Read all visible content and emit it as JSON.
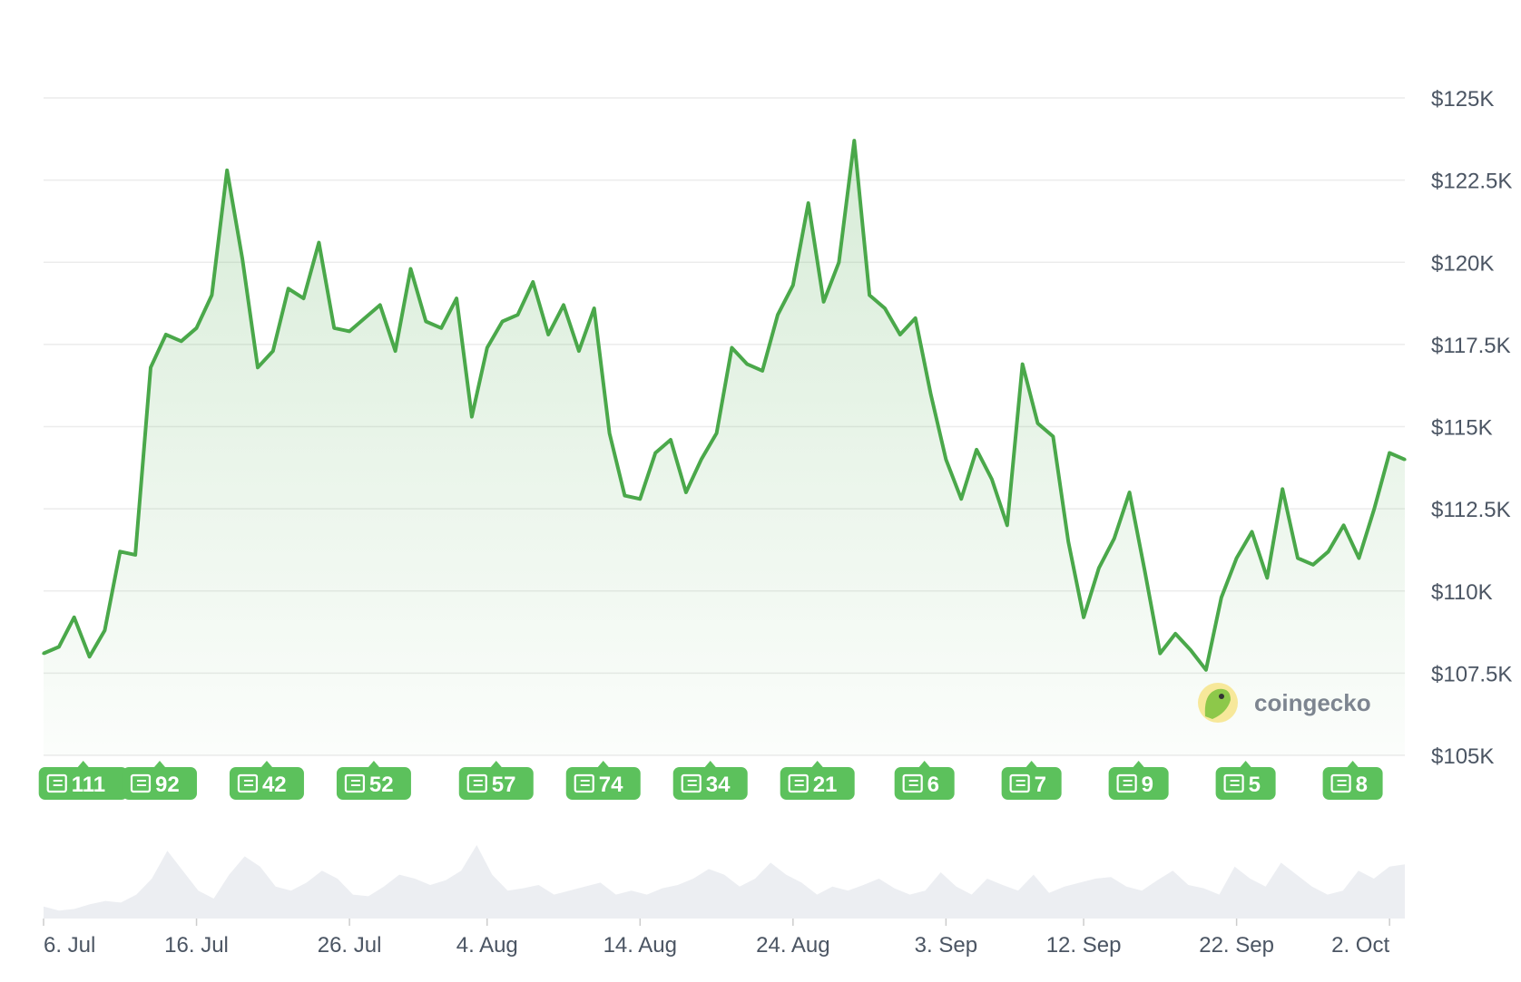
{
  "chart_data": {
    "type": "area",
    "title": "",
    "xlabel": "",
    "ylabel": "",
    "line_color": "#4aa84a",
    "fill_color": "#4aa84a",
    "grid": true,
    "y_axis_position": "right",
    "ylim": [
      105000,
      125000
    ],
    "y_ticks": [
      {
        "value": 125000,
        "label": "$125K"
      },
      {
        "value": 122500,
        "label": "$122.5K"
      },
      {
        "value": 120000,
        "label": "$120K"
      },
      {
        "value": 117500,
        "label": "$117.5K"
      },
      {
        "value": 115000,
        "label": "$115K"
      },
      {
        "value": 112500,
        "label": "$112.5K"
      },
      {
        "value": 110000,
        "label": "$110K"
      },
      {
        "value": 107500,
        "label": "$107.5K"
      },
      {
        "value": 105000,
        "label": "$105K"
      }
    ],
    "x_range": [
      "2025-07-06",
      "2025-10-03"
    ],
    "x_ticks": [
      {
        "date": "2025-07-06",
        "label": "6. Jul"
      },
      {
        "date": "2025-07-16",
        "label": "16. Jul"
      },
      {
        "date": "2025-07-26",
        "label": "26. Jul"
      },
      {
        "date": "2025-08-04",
        "label": "4. Aug"
      },
      {
        "date": "2025-08-14",
        "label": "14. Aug"
      },
      {
        "date": "2025-08-24",
        "label": "24. Aug"
      },
      {
        "date": "2025-09-03",
        "label": "3. Sep"
      },
      {
        "date": "2025-09-12",
        "label": "12. Sep"
      },
      {
        "date": "2025-09-22",
        "label": "22. Sep"
      },
      {
        "date": "2025-10-02",
        "label": "2. Oct"
      }
    ],
    "series": [
      {
        "name": "",
        "points": [
          {
            "x": "2025-07-06",
            "y": 108100
          },
          {
            "x": "2025-07-07",
            "y": 108300
          },
          {
            "x": "2025-07-08",
            "y": 109200
          },
          {
            "x": "2025-07-09",
            "y": 108000
          },
          {
            "x": "2025-07-10",
            "y": 108800
          },
          {
            "x": "2025-07-11",
            "y": 111200
          },
          {
            "x": "2025-07-12",
            "y": 111100
          },
          {
            "x": "2025-07-13",
            "y": 116800
          },
          {
            "x": "2025-07-14",
            "y": 117800
          },
          {
            "x": "2025-07-15",
            "y": 117600
          },
          {
            "x": "2025-07-16",
            "y": 118000
          },
          {
            "x": "2025-07-17",
            "y": 119000
          },
          {
            "x": "2025-07-18",
            "y": 122800
          },
          {
            "x": "2025-07-19",
            "y": 120100
          },
          {
            "x": "2025-07-20",
            "y": 116800
          },
          {
            "x": "2025-07-21",
            "y": 117300
          },
          {
            "x": "2025-07-22",
            "y": 119200
          },
          {
            "x": "2025-07-23",
            "y": 118900
          },
          {
            "x": "2025-07-24",
            "y": 120600
          },
          {
            "x": "2025-07-25",
            "y": 118000
          },
          {
            "x": "2025-07-26",
            "y": 117900
          },
          {
            "x": "2025-07-27",
            "y": 118300
          },
          {
            "x": "2025-07-28",
            "y": 118700
          },
          {
            "x": "2025-07-29",
            "y": 117300
          },
          {
            "x": "2025-07-30",
            "y": 119800
          },
          {
            "x": "2025-07-31",
            "y": 118200
          },
          {
            "x": "2025-08-01",
            "y": 118000
          },
          {
            "x": "2025-08-02",
            "y": 118900
          },
          {
            "x": "2025-08-03",
            "y": 115300
          },
          {
            "x": "2025-08-04",
            "y": 117400
          },
          {
            "x": "2025-08-05",
            "y": 118200
          },
          {
            "x": "2025-08-06",
            "y": 118400
          },
          {
            "x": "2025-08-07",
            "y": 119400
          },
          {
            "x": "2025-08-08",
            "y": 117800
          },
          {
            "x": "2025-08-09",
            "y": 118700
          },
          {
            "x": "2025-08-10",
            "y": 117300
          },
          {
            "x": "2025-08-11",
            "y": 118600
          },
          {
            "x": "2025-08-12",
            "y": 114800
          },
          {
            "x": "2025-08-13",
            "y": 112900
          },
          {
            "x": "2025-08-14",
            "y": 112800
          },
          {
            "x": "2025-08-15",
            "y": 114200
          },
          {
            "x": "2025-08-16",
            "y": 114600
          },
          {
            "x": "2025-08-17",
            "y": 113000
          },
          {
            "x": "2025-08-18",
            "y": 114000
          },
          {
            "x": "2025-08-19",
            "y": 114800
          },
          {
            "x": "2025-08-20",
            "y": 117400
          },
          {
            "x": "2025-08-21",
            "y": 116900
          },
          {
            "x": "2025-08-22",
            "y": 116700
          },
          {
            "x": "2025-08-23",
            "y": 118400
          },
          {
            "x": "2025-08-24",
            "y": 119300
          },
          {
            "x": "2025-08-25",
            "y": 121800
          },
          {
            "x": "2025-08-26",
            "y": 118800
          },
          {
            "x": "2025-08-27",
            "y": 120000
          },
          {
            "x": "2025-08-28",
            "y": 123700
          },
          {
            "x": "2025-08-29",
            "y": 119000
          },
          {
            "x": "2025-08-30",
            "y": 118600
          },
          {
            "x": "2025-08-31",
            "y": 117800
          },
          {
            "x": "2025-09-01",
            "y": 118300
          },
          {
            "x": "2025-09-02",
            "y": 116000
          },
          {
            "x": "2025-09-03",
            "y": 114000
          },
          {
            "x": "2025-09-04",
            "y": 112800
          },
          {
            "x": "2025-09-05",
            "y": 114300
          },
          {
            "x": "2025-09-06",
            "y": 113400
          },
          {
            "x": "2025-09-07",
            "y": 112000
          },
          {
            "x": "2025-09-08",
            "y": 116900
          },
          {
            "x": "2025-09-09",
            "y": 115100
          },
          {
            "x": "2025-09-10",
            "y": 114700
          },
          {
            "x": "2025-09-11",
            "y": 111500
          },
          {
            "x": "2025-09-12",
            "y": 109200
          },
          {
            "x": "2025-09-13",
            "y": 110700
          },
          {
            "x": "2025-09-14",
            "y": 111600
          },
          {
            "x": "2025-09-15",
            "y": 113000
          },
          {
            "x": "2025-09-16",
            "y": 110600
          },
          {
            "x": "2025-09-17",
            "y": 108100
          },
          {
            "x": "2025-09-18",
            "y": 108700
          },
          {
            "x": "2025-09-19",
            "y": 108200
          },
          {
            "x": "2025-09-20",
            "y": 107600
          },
          {
            "x": "2025-09-21",
            "y": 109800
          },
          {
            "x": "2025-09-22",
            "y": 111000
          },
          {
            "x": "2025-09-23",
            "y": 111800
          },
          {
            "x": "2025-09-24",
            "y": 110400
          },
          {
            "x": "2025-09-25",
            "y": 113100
          },
          {
            "x": "2025-09-26",
            "y": 111000
          },
          {
            "x": "2025-09-27",
            "y": 110800
          },
          {
            "x": "2025-09-28",
            "y": 111200
          },
          {
            "x": "2025-09-29",
            "y": 112000
          },
          {
            "x": "2025-09-30",
            "y": 111000
          },
          {
            "x": "2025-10-01",
            "y": 112500
          },
          {
            "x": "2025-10-02",
            "y": 114200
          },
          {
            "x": "2025-10-03",
            "y": 114000
          }
        ]
      }
    ],
    "news_markers": [
      {
        "date": "2025-07-08",
        "count": "111"
      },
      {
        "date": "2025-07-13",
        "count": "92"
      },
      {
        "date": "2025-07-20",
        "count": "42"
      },
      {
        "date": "2025-07-27",
        "count": "52"
      },
      {
        "date": "2025-08-04",
        "count": "57"
      },
      {
        "date": "2025-08-11",
        "count": "74"
      },
      {
        "date": "2025-08-18",
        "count": "34"
      },
      {
        "date": "2025-08-25",
        "count": "21"
      },
      {
        "date": "2025-09-01",
        "count": "6"
      },
      {
        "date": "2025-09-08",
        "count": "7"
      },
      {
        "date": "2025-09-15",
        "count": "9"
      },
      {
        "date": "2025-09-22",
        "count": "5"
      },
      {
        "date": "2025-09-29",
        "count": "8"
      }
    ],
    "volume_series": [
      0.15,
      0.1,
      0.12,
      0.18,
      0.22,
      0.2,
      0.3,
      0.5,
      0.85,
      0.6,
      0.35,
      0.25,
      0.55,
      0.78,
      0.65,
      0.4,
      0.35,
      0.45,
      0.6,
      0.5,
      0.3,
      0.28,
      0.4,
      0.55,
      0.5,
      0.42,
      0.48,
      0.6,
      0.92,
      0.55,
      0.35,
      0.38,
      0.42,
      0.3,
      0.35,
      0.4,
      0.45,
      0.3,
      0.35,
      0.3,
      0.38,
      0.42,
      0.5,
      0.62,
      0.55,
      0.4,
      0.5,
      0.7,
      0.55,
      0.45,
      0.3,
      0.4,
      0.35,
      0.42,
      0.5,
      0.38,
      0.3,
      0.35,
      0.58,
      0.4,
      0.3,
      0.5,
      0.42,
      0.35,
      0.55,
      0.32,
      0.4,
      0.45,
      0.5,
      0.52,
      0.4,
      0.35,
      0.48,
      0.6,
      0.42,
      0.38,
      0.3,
      0.65,
      0.5,
      0.4,
      0.7,
      0.55,
      0.4,
      0.3,
      0.35,
      0.6,
      0.5,
      0.65,
      0.68
    ]
  },
  "watermark": {
    "text": "coingecko"
  }
}
